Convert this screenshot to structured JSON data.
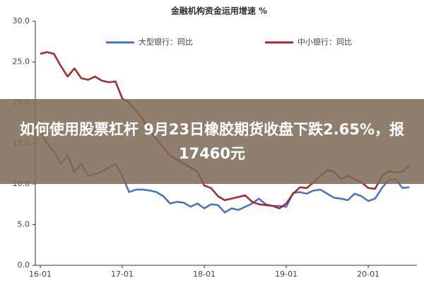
{
  "chart_data": {
    "type": "line",
    "title": "金融机构资金运用增速 %",
    "annotations": [
      "如何使用股票杠杆 9月23日橡胶期货收盘下跌2.65%，报17460元"
    ],
    "categories": [
      "16-01",
      null,
      null,
      null,
      null,
      null,
      null,
      null,
      null,
      null,
      null,
      null,
      "17-01",
      null,
      null,
      null,
      null,
      null,
      null,
      null,
      null,
      null,
      null,
      null,
      "18-01",
      null,
      null,
      null,
      null,
      null,
      null,
      null,
      null,
      null,
      null,
      null,
      "19-01",
      null,
      null,
      null,
      null,
      null,
      null,
      null,
      null,
      null,
      null,
      null,
      "20-01",
      null,
      null,
      null,
      null,
      null,
      null
    ],
    "series": [
      {
        "name": "大型银行：同比",
        "color": "#4472c4",
        "values": [
          16.5,
          15.0,
          14.0,
          12.5,
          13.5,
          11.5,
          12.5,
          11.0,
          11.2,
          11.5,
          12.0,
          12.5,
          11.0,
          9.0,
          9.3,
          9.3,
          9.2,
          9.0,
          8.5,
          7.6,
          7.8,
          7.7,
          7.2,
          7.6,
          7.0,
          7.5,
          7.4,
          6.5,
          7.0,
          6.8,
          7.2,
          7.6,
          8.2,
          7.5,
          7.3,
          7.3,
          7.2,
          8.9,
          9.0,
          8.8,
          9.2,
          9.3,
          8.8,
          8.3,
          8.2,
          8.0,
          8.8,
          8.5,
          7.9,
          8.2,
          9.5,
          10.5,
          10.6,
          9.5,
          9.6
        ]
      },
      {
        "name": "中小银行：同比",
        "color": "#a5282c",
        "values": [
          26.0,
          26.2,
          26.0,
          24.5,
          23.2,
          24.2,
          23.0,
          22.8,
          23.2,
          22.7,
          22.5,
          22.6,
          20.5,
          20.0,
          19.0,
          18.0,
          16.5,
          15.5,
          14.5,
          13.5,
          13.0,
          12.5,
          12.0,
          11.5,
          9.8,
          9.5,
          8.5,
          8.0,
          8.2,
          8.4,
          8.6,
          7.8,
          7.5,
          7.4,
          7.3,
          7.0,
          7.6,
          8.8,
          9.6,
          9.5,
          10.2,
          11.0,
          11.7,
          11.5,
          10.6,
          11.0,
          10.6,
          10.2,
          9.5,
          9.4,
          11.0,
          11.6,
          11.4,
          11.5,
          12.3
        ]
      }
    ],
    "ylim": [
      0,
      30
    ],
    "yticks": [
      {
        "value": 0,
        "label": "0.0"
      },
      {
        "value": 5,
        "label": "5.0"
      },
      {
        "value": 10,
        "label": "10.0"
      },
      {
        "value": 15,
        "label": "15.0"
      },
      {
        "value": 20,
        "label": "20.0"
      },
      {
        "value": 25,
        "label": "25.0"
      },
      {
        "value": 30,
        "label": "30.0"
      }
    ],
    "grid": false
  }
}
